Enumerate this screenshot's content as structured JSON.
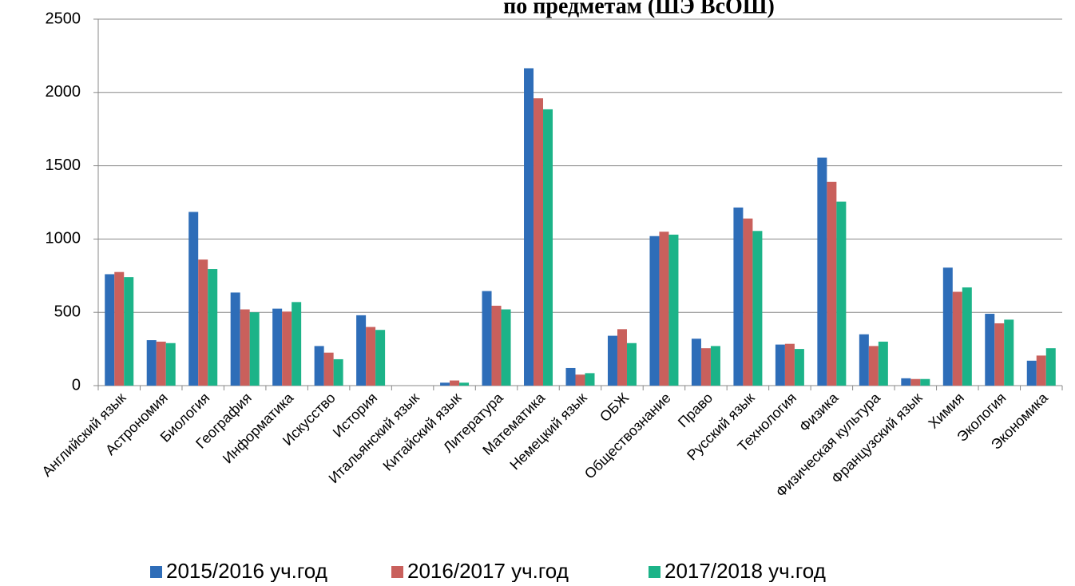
{
  "chart_data": {
    "type": "bar",
    "title": "по предметам (ШЭ ВсОШ)",
    "categories": [
      "Английский язык",
      "Астрономия",
      "Биология",
      "География",
      "Информатика",
      "Искусство",
      "История",
      "Итальянский язык",
      "Китайский язык",
      "Литература",
      "Математика",
      "Немецкий язык",
      "ОБЖ",
      "Обществознание",
      "Право",
      "Русский язык",
      "Технология",
      "Физика",
      "Физическая культура",
      "Французский язык",
      "Химия",
      "Экология",
      "Экономика"
    ],
    "series": [
      {
        "name": "2015/2016 уч.год",
        "color": "#2e6db8",
        "values": [
          760,
          310,
          1185,
          635,
          525,
          270,
          480,
          0,
          20,
          645,
          2165,
          120,
          340,
          1020,
          320,
          1215,
          280,
          1555,
          350,
          50,
          805,
          490,
          170
        ]
      },
      {
        "name": "2016/2017 уч.год",
        "color": "#c9605c",
        "values": [
          775,
          300,
          860,
          520,
          505,
          225,
          400,
          0,
          35,
          545,
          1960,
          75,
          385,
          1050,
          255,
          1140,
          285,
          1390,
          270,
          45,
          640,
          425,
          205
        ]
      },
      {
        "name": "2017/2018 уч.год",
        "color": "#1cb388",
        "values": [
          740,
          290,
          795,
          500,
          570,
          180,
          380,
          0,
          20,
          520,
          1885,
          85,
          290,
          1030,
          270,
          1055,
          250,
          1255,
          300,
          45,
          670,
          450,
          255
        ]
      }
    ],
    "ylim": [
      0,
      2500
    ],
    "yticks": [
      0,
      500,
      1000,
      1500,
      2000,
      2500
    ],
    "grid": true,
    "legend": "bottom"
  }
}
